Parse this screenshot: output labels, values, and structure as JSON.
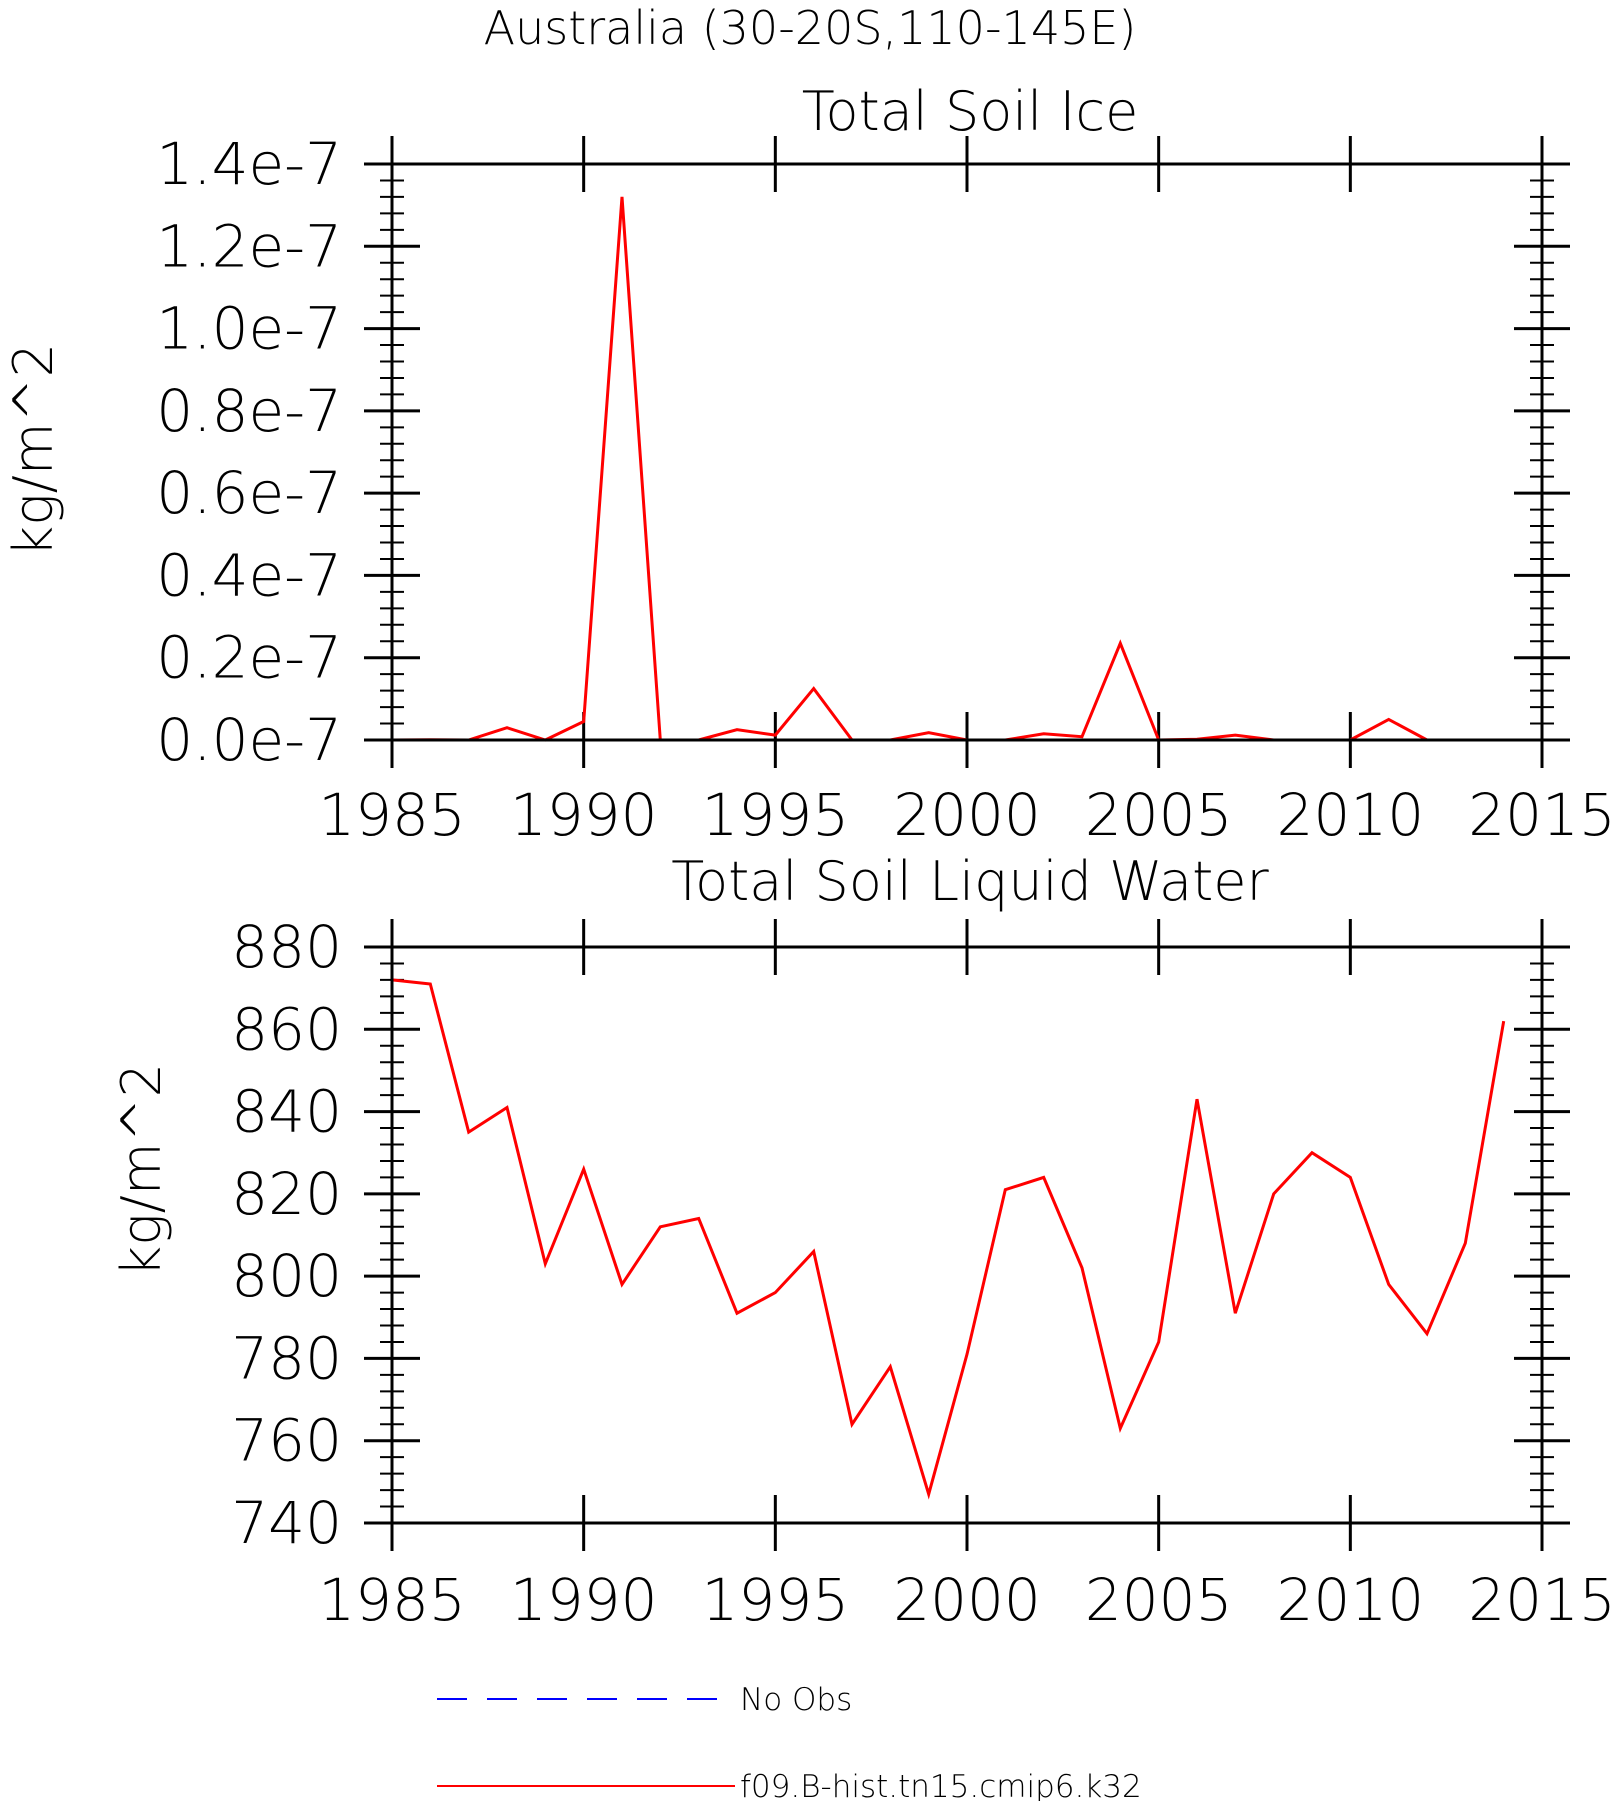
{
  "figure_title": "Australia (30-20S,110-145E)",
  "legend": {
    "entries": [
      {
        "label": "No Obs",
        "color": "#0000ff",
        "dash": true
      },
      {
        "label": "f09.B-hist.tn15.cmip6.k32",
        "color": "#ff0000",
        "dash": false
      }
    ]
  },
  "colors": {
    "model_line": "#ff0000",
    "obs_line": "#0000ff"
  },
  "chart_data": [
    {
      "type": "line",
      "title": "Total Soil Ice",
      "ylabel": "kg/m^2",
      "xlabel": "",
      "xlim": [
        1985,
        2015
      ],
      "ylim": [
        0,
        1.4e-07
      ],
      "xticks": [
        1985,
        1990,
        1995,
        2000,
        2005,
        2010,
        2015
      ],
      "xtick_labels": [
        "1985",
        "1990",
        "1995",
        "2000",
        "2005",
        "2010",
        "2015"
      ],
      "yticks": [
        0,
        2e-08,
        4e-08,
        6e-08,
        8e-08,
        1e-07,
        1.2e-07,
        1.4e-07
      ],
      "ytick_labels": [
        "0.0e-7",
        "0.2e-7",
        "0.4e-7",
        "0.6e-7",
        "0.8e-7",
        "1.0e-7",
        "1.2e-7",
        "1.4e-7"
      ],
      "grid": false,
      "series": [
        {
          "name": "f09.B-hist.tn15.cmip6.k32",
          "x": [
            1985,
            1986,
            1987,
            1988,
            1989,
            1990,
            1991,
            1992,
            1993,
            1994,
            1995,
            1996,
            1997,
            1998,
            1999,
            2000,
            2001,
            2002,
            2003,
            2004,
            2005,
            2006,
            2007,
            2008,
            2009,
            2010,
            2011,
            2012,
            2013,
            2014
          ],
          "values": [
            0,
            5e-11,
            0,
            3e-09,
            0,
            4.5e-09,
            1.32e-07,
            0,
            0,
            2.5e-09,
            1.2e-09,
            1.25e-08,
            0,
            0,
            1.8e-09,
            0,
            0,
            1.5e-09,
            8e-10,
            2.35e-08,
            0,
            2e-10,
            1.2e-09,
            0,
            0,
            0,
            5e-09,
            0,
            0,
            0
          ]
        }
      ]
    },
    {
      "type": "line",
      "title": "Total Soil Liquid Water",
      "ylabel": "kg/m^2",
      "xlabel": "",
      "xlim": [
        1985,
        2015
      ],
      "ylim": [
        740,
        880
      ],
      "xticks": [
        1985,
        1990,
        1995,
        2000,
        2005,
        2010,
        2015
      ],
      "xtick_labels": [
        "1985",
        "1990",
        "1995",
        "2000",
        "2005",
        "2010",
        "2015"
      ],
      "yticks": [
        740,
        760,
        780,
        800,
        820,
        840,
        860,
        880
      ],
      "ytick_labels": [
        "740",
        "760",
        "780",
        "800",
        "820",
        "840",
        "860",
        "880"
      ],
      "grid": false,
      "series": [
        {
          "name": "f09.B-hist.tn15.cmip6.k32",
          "x": [
            1985,
            1986,
            1987,
            1988,
            1989,
            1990,
            1991,
            1992,
            1993,
            1994,
            1995,
            1996,
            1997,
            1998,
            1999,
            2000,
            2001,
            2002,
            2003,
            2004,
            2005,
            2006,
            2007,
            2008,
            2009,
            2010,
            2011,
            2012,
            2013,
            2014
          ],
          "values": [
            872,
            871,
            835,
            841,
            803,
            826,
            798,
            812,
            814,
            791,
            796,
            806,
            764,
            778,
            747,
            781,
            821,
            824,
            802,
            763,
            784,
            843,
            791,
            820,
            830,
            824,
            798,
            786,
            808,
            862
          ]
        }
      ]
    }
  ]
}
